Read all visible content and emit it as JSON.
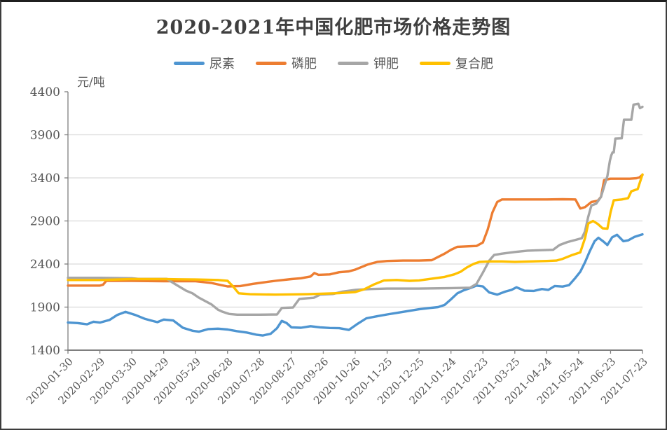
{
  "title": "2020-2021年中国化肥市场价格走势图",
  "unit_label": "元/吨",
  "frame_border_color": "#3c3c3c",
  "axis_color": "#7f7f7f",
  "gridline_color": "#d9d9d9",
  "text_color": "#595959",
  "chart_data": {
    "type": "line",
    "title": "2020-2021年中国化肥市场价格走势图",
    "ylabel": "元/吨",
    "xlabel": "",
    "ylim": [
      1400,
      4400
    ],
    "y_ticks": [
      1400,
      1900,
      2400,
      2900,
      3400,
      3900,
      4400
    ],
    "grid": true,
    "legend_position": "top",
    "x_tick_labels": [
      "2020-01-30",
      "2020-02-29",
      "2020-03-30",
      "2020-04-29",
      "2020-05-29",
      "2020-06-28",
      "2020-07-28",
      "2020-08-27",
      "2020-09-26",
      "2020-10-26",
      "2020-11-25",
      "2020-12-25",
      "2021-01-24",
      "2021-02-23",
      "2021-03-25",
      "2021-04-24",
      "2021-05-24",
      "2021-06-23",
      "2021-07-23"
    ],
    "x_unit": "tick index (0 = 2020-01-30, 18 = 2021-07-23), fractional = days between",
    "series": [
      {
        "name": "尿素",
        "color": "#4E95D1",
        "points": [
          [
            0,
            1720
          ],
          [
            0.3,
            1715
          ],
          [
            0.6,
            1700
          ],
          [
            0.8,
            1730
          ],
          [
            1.0,
            1720
          ],
          [
            1.3,
            1750
          ],
          [
            1.55,
            1810
          ],
          [
            1.8,
            1845
          ],
          [
            2.1,
            1810
          ],
          [
            2.4,
            1765
          ],
          [
            2.6,
            1745
          ],
          [
            2.8,
            1725
          ],
          [
            3.0,
            1755
          ],
          [
            3.3,
            1745
          ],
          [
            3.6,
            1660
          ],
          [
            3.9,
            1625
          ],
          [
            4.1,
            1615
          ],
          [
            4.4,
            1645
          ],
          [
            4.7,
            1650
          ],
          [
            5.0,
            1640
          ],
          [
            5.3,
            1620
          ],
          [
            5.6,
            1605
          ],
          [
            5.9,
            1580
          ],
          [
            6.1,
            1570
          ],
          [
            6.35,
            1590
          ],
          [
            6.55,
            1655
          ],
          [
            6.7,
            1740
          ],
          [
            6.85,
            1715
          ],
          [
            7.0,
            1665
          ],
          [
            7.3,
            1660
          ],
          [
            7.6,
            1678
          ],
          [
            7.9,
            1665
          ],
          [
            8.2,
            1658
          ],
          [
            8.5,
            1655
          ],
          [
            8.8,
            1635
          ],
          [
            9.05,
            1700
          ],
          [
            9.35,
            1770
          ],
          [
            9.7,
            1795
          ],
          [
            10.0,
            1815
          ],
          [
            10.5,
            1845
          ],
          [
            11.0,
            1875
          ],
          [
            11.35,
            1890
          ],
          [
            11.6,
            1900
          ],
          [
            11.8,
            1925
          ],
          [
            12.0,
            1990
          ],
          [
            12.2,
            2060
          ],
          [
            12.4,
            2095
          ],
          [
            12.6,
            2120
          ],
          [
            12.8,
            2150
          ],
          [
            13.0,
            2140
          ],
          [
            13.2,
            2070
          ],
          [
            13.45,
            2045
          ],
          [
            13.7,
            2080
          ],
          [
            13.9,
            2100
          ],
          [
            14.05,
            2130
          ],
          [
            14.3,
            2090
          ],
          [
            14.6,
            2088
          ],
          [
            14.85,
            2110
          ],
          [
            15.05,
            2100
          ],
          [
            15.25,
            2145
          ],
          [
            15.5,
            2138
          ],
          [
            15.7,
            2155
          ],
          [
            15.9,
            2240
          ],
          [
            16.05,
            2310
          ],
          [
            16.2,
            2420
          ],
          [
            16.35,
            2550
          ],
          [
            16.5,
            2665
          ],
          [
            16.62,
            2705
          ],
          [
            16.78,
            2660
          ],
          [
            16.9,
            2620
          ],
          [
            17.05,
            2710
          ],
          [
            17.2,
            2740
          ],
          [
            17.4,
            2665
          ],
          [
            17.55,
            2675
          ],
          [
            17.75,
            2715
          ],
          [
            18,
            2745
          ]
        ]
      },
      {
        "name": "磷肥",
        "color": "#ED7D31",
        "points": [
          [
            0,
            2150
          ],
          [
            0.5,
            2150
          ],
          [
            1.0,
            2150
          ],
          [
            1.1,
            2160
          ],
          [
            1.2,
            2205
          ],
          [
            2.0,
            2205
          ],
          [
            3.0,
            2200
          ],
          [
            4.0,
            2200
          ],
          [
            4.5,
            2180
          ],
          [
            4.8,
            2155
          ],
          [
            5.0,
            2140
          ],
          [
            5.4,
            2145
          ],
          [
            5.8,
            2170
          ],
          [
            6.1,
            2185
          ],
          [
            6.5,
            2205
          ],
          [
            7.0,
            2225
          ],
          [
            7.3,
            2235
          ],
          [
            7.6,
            2255
          ],
          [
            7.72,
            2295
          ],
          [
            7.85,
            2275
          ],
          [
            8.2,
            2280
          ],
          [
            8.5,
            2305
          ],
          [
            8.8,
            2315
          ],
          [
            9.0,
            2335
          ],
          [
            9.4,
            2395
          ],
          [
            9.7,
            2425
          ],
          [
            10.0,
            2435
          ],
          [
            10.5,
            2440
          ],
          [
            11.0,
            2440
          ],
          [
            11.4,
            2445
          ],
          [
            11.8,
            2520
          ],
          [
            12.0,
            2565
          ],
          [
            12.2,
            2600
          ],
          [
            12.5,
            2605
          ],
          [
            12.8,
            2610
          ],
          [
            13.0,
            2650
          ],
          [
            13.15,
            2800
          ],
          [
            13.3,
            3000
          ],
          [
            13.45,
            3120
          ],
          [
            13.6,
            3150
          ],
          [
            14.0,
            3150
          ],
          [
            14.5,
            3150
          ],
          [
            15.0,
            3150
          ],
          [
            15.5,
            3152
          ],
          [
            15.9,
            3150
          ],
          [
            16.05,
            3045
          ],
          [
            16.2,
            3060
          ],
          [
            16.4,
            3120
          ],
          [
            16.6,
            3135
          ],
          [
            16.7,
            3180
          ],
          [
            16.8,
            3375
          ],
          [
            17.0,
            3390
          ],
          [
            17.3,
            3390
          ],
          [
            17.6,
            3390
          ],
          [
            17.8,
            3395
          ],
          [
            17.9,
            3405
          ],
          [
            18,
            3435
          ]
        ]
      },
      {
        "name": "钾肥",
        "color": "#A6A6A6",
        "points": [
          [
            0,
            2240
          ],
          [
            1.0,
            2240
          ],
          [
            2.0,
            2235
          ],
          [
            2.2,
            2228
          ],
          [
            3.1,
            2228
          ],
          [
            3.3,
            2180
          ],
          [
            3.5,
            2135
          ],
          [
            3.7,
            2090
          ],
          [
            3.9,
            2060
          ],
          [
            4.1,
            2010
          ],
          [
            4.3,
            1970
          ],
          [
            4.5,
            1930
          ],
          [
            4.7,
            1870
          ],
          [
            4.85,
            1845
          ],
          [
            5.05,
            1820
          ],
          [
            5.3,
            1812
          ],
          [
            6.0,
            1812
          ],
          [
            6.55,
            1815
          ],
          [
            6.7,
            1890
          ],
          [
            7.05,
            1895
          ],
          [
            7.25,
            1995
          ],
          [
            7.7,
            2008
          ],
          [
            7.9,
            2045
          ],
          [
            8.3,
            2052
          ],
          [
            8.6,
            2080
          ],
          [
            9.0,
            2100
          ],
          [
            9.5,
            2110
          ],
          [
            10.0,
            2115
          ],
          [
            11.0,
            2115
          ],
          [
            12.0,
            2120
          ],
          [
            12.6,
            2125
          ],
          [
            12.8,
            2170
          ],
          [
            13.0,
            2300
          ],
          [
            13.2,
            2440
          ],
          [
            13.35,
            2505
          ],
          [
            13.6,
            2520
          ],
          [
            14.0,
            2540
          ],
          [
            14.4,
            2555
          ],
          [
            14.8,
            2560
          ],
          [
            15.2,
            2565
          ],
          [
            15.4,
            2620
          ],
          [
            15.65,
            2655
          ],
          [
            15.9,
            2680
          ],
          [
            16.1,
            2700
          ],
          [
            16.2,
            2780
          ],
          [
            16.3,
            2950
          ],
          [
            16.4,
            3080
          ],
          [
            16.55,
            3100
          ],
          [
            16.7,
            3180
          ],
          [
            16.8,
            3300
          ],
          [
            16.9,
            3420
          ],
          [
            16.98,
            3600
          ],
          [
            17.02,
            3660
          ],
          [
            17.06,
            3695
          ],
          [
            17.1,
            3695
          ],
          [
            17.15,
            3855
          ],
          [
            17.35,
            3860
          ],
          [
            17.42,
            4075
          ],
          [
            17.65,
            4075
          ],
          [
            17.72,
            4250
          ],
          [
            17.87,
            4260
          ],
          [
            17.92,
            4210
          ],
          [
            18,
            4225
          ]
        ]
      },
      {
        "name": "复合肥",
        "color": "#FFC000",
        "points": [
          [
            0,
            2215
          ],
          [
            1.0,
            2215
          ],
          [
            2.0,
            2225
          ],
          [
            3.0,
            2225
          ],
          [
            4.0,
            2220
          ],
          [
            4.7,
            2215
          ],
          [
            5.0,
            2205
          ],
          [
            5.15,
            2150
          ],
          [
            5.35,
            2060
          ],
          [
            5.7,
            2050
          ],
          [
            6.5,
            2045
          ],
          [
            7.5,
            2050
          ],
          [
            8.5,
            2062
          ],
          [
            9.0,
            2075
          ],
          [
            9.3,
            2110
          ],
          [
            9.6,
            2165
          ],
          [
            9.9,
            2210
          ],
          [
            10.3,
            2215
          ],
          [
            10.7,
            2205
          ],
          [
            11.0,
            2210
          ],
          [
            11.4,
            2230
          ],
          [
            11.8,
            2250
          ],
          [
            12.1,
            2280
          ],
          [
            12.3,
            2310
          ],
          [
            12.5,
            2360
          ],
          [
            12.7,
            2400
          ],
          [
            12.9,
            2425
          ],
          [
            13.2,
            2430
          ],
          [
            13.6,
            2430
          ],
          [
            14.0,
            2425
          ],
          [
            14.5,
            2430
          ],
          [
            15.0,
            2435
          ],
          [
            15.3,
            2440
          ],
          [
            15.5,
            2460
          ],
          [
            15.8,
            2505
          ],
          [
            16.05,
            2535
          ],
          [
            16.2,
            2700
          ],
          [
            16.3,
            2870
          ],
          [
            16.45,
            2900
          ],
          [
            16.6,
            2865
          ],
          [
            16.75,
            2815
          ],
          [
            16.9,
            2810
          ],
          [
            17.0,
            3000
          ],
          [
            17.1,
            3140
          ],
          [
            17.35,
            3150
          ],
          [
            17.55,
            3165
          ],
          [
            17.65,
            3245
          ],
          [
            17.85,
            3270
          ],
          [
            18,
            3440
          ]
        ]
      }
    ]
  }
}
